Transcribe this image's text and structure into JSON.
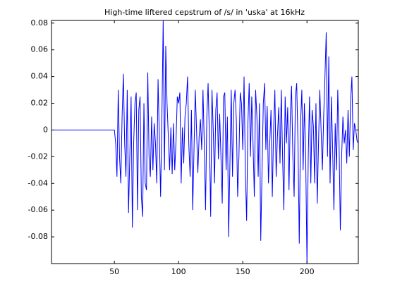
{
  "chart_data": {
    "type": "line",
    "title": "High-time liftered cepstrum of /s/ in 'uska' at 16kHz",
    "x": [
      1,
      2,
      3,
      4,
      5,
      6,
      7,
      8,
      9,
      10,
      11,
      12,
      13,
      14,
      15,
      16,
      17,
      18,
      19,
      20,
      21,
      22,
      23,
      24,
      25,
      26,
      27,
      28,
      29,
      30,
      31,
      32,
      33,
      34,
      35,
      36,
      37,
      38,
      39,
      40,
      41,
      42,
      43,
      44,
      45,
      46,
      47,
      48,
      49,
      50,
      51,
      52,
      53,
      54,
      55,
      56,
      57,
      58,
      59,
      60,
      61,
      62,
      63,
      64,
      65,
      66,
      67,
      68,
      69,
      70,
      71,
      72,
      73,
      74,
      75,
      76,
      77,
      78,
      79,
      80,
      81,
      82,
      83,
      84,
      85,
      86,
      87,
      88,
      89,
      90,
      91,
      92,
      93,
      94,
      95,
      96,
      97,
      98,
      99,
      100,
      101,
      102,
      103,
      104,
      105,
      106,
      107,
      108,
      109,
      110,
      111,
      112,
      113,
      114,
      115,
      116,
      117,
      118,
      119,
      120,
      121,
      122,
      123,
      124,
      125,
      126,
      127,
      128,
      129,
      130,
      131,
      132,
      133,
      134,
      135,
      136,
      137,
      138,
      139,
      140,
      141,
      142,
      143,
      144,
      145,
      146,
      147,
      148,
      149,
      150,
      151,
      152,
      153,
      154,
      155,
      156,
      157,
      158,
      159,
      160,
      161,
      162,
      163,
      164,
      165,
      166,
      167,
      168,
      169,
      170,
      171,
      172,
      173,
      174,
      175,
      176,
      177,
      178,
      179,
      180,
      181,
      182,
      183,
      184,
      185,
      186,
      187,
      188,
      189,
      190,
      191,
      192,
      193,
      194,
      195,
      196,
      197,
      198,
      199,
      200,
      201,
      202,
      203,
      204,
      205,
      206,
      207,
      208,
      209,
      210,
      211,
      212,
      213,
      214,
      215,
      216,
      217,
      218,
      219,
      220,
      221,
      222,
      223,
      224,
      225,
      226,
      227,
      228,
      229,
      230,
      231,
      232,
      233,
      234,
      235,
      236,
      237,
      238,
      239,
      240
    ],
    "series": [
      {
        "color": "#0000ff",
        "values": [
          0,
          0,
          0,
          0,
          0,
          0,
          0,
          0,
          0,
          0,
          0,
          0,
          0,
          0,
          0,
          0,
          0,
          0,
          0,
          0,
          0,
          0,
          0,
          0,
          0,
          0,
          0,
          0,
          0,
          0,
          0,
          0,
          0,
          0,
          0,
          0,
          0,
          0,
          0,
          0,
          0,
          0,
          0,
          0,
          0,
          0,
          0,
          0,
          0,
          0,
          -0.01,
          -0.035,
          0.03,
          -0.02,
          -0.04,
          0.01,
          0.042,
          -0.01,
          -0.035,
          0.03,
          -0.062,
          -0.02,
          0.025,
          -0.073,
          -0.01,
          0.02,
          0.028,
          -0.06,
          0.015,
          0.025,
          -0.05,
          -0.065,
          0.02,
          -0.04,
          -0.045,
          0.043,
          -0.02,
          -0.035,
          0.01,
          -0.03,
          0.005,
          -0.01,
          -0.04,
          0.038,
          -0.005,
          -0.05,
          0.01,
          0.082,
          -0.03,
          0.063,
          0.02,
          -0.005,
          -0.03,
          0.002,
          -0.033,
          0.005,
          -0.03,
          -0.008,
          0.025,
          0.02,
          0.028,
          -0.04,
          0.002,
          -0.025,
          0.01,
          0.02,
          0.04,
          -0.012,
          -0.035,
          0.015,
          -0.06,
          -0.015,
          0.03,
          0.0,
          -0.032,
          -0.005,
          0.008,
          -0.015,
          0.03,
          -0.01,
          -0.06,
          0.01,
          0.035,
          -0.005,
          -0.065,
          0.03,
          0.0,
          -0.04,
          0.015,
          0.028,
          -0.022,
          0.012,
          -0.02,
          -0.055,
          0.025,
          0.028,
          -0.03,
          0.01,
          -0.08,
          -0.025,
          0.03,
          -0.035,
          0.02,
          0.03,
          0.007,
          -0.05,
          -0.02,
          0.028,
          0.02,
          -0.015,
          0.04,
          -0.03,
          -0.068,
          0.005,
          0.035,
          -0.02,
          0.025,
          -0.01,
          -0.05,
          0.03,
          0.01,
          -0.035,
          0.02,
          -0.083,
          -0.03,
          0.02,
          0.035,
          -0.015,
          0.018,
          -0.04,
          -0.01,
          0.015,
          -0.05,
          0.0,
          0.03,
          -0.035,
          -0.005,
          0.017,
          -0.025,
          0.03,
          -0.02,
          -0.06,
          0.025,
          -0.01,
          0.017,
          -0.045,
          0.01,
          0.033,
          -0.02,
          -0.05,
          0.025,
          0.035,
          -0.01,
          -0.085,
          0.005,
          0.03,
          -0.03,
          0.02,
          -0.02,
          -0.1,
          -0.02,
          0.025,
          -0.04,
          0.015,
          0.003,
          -0.04,
          0.02,
          -0.055,
          -0.01,
          0.03,
          0.0,
          -0.03,
          0.01,
          0.04,
          0.073,
          -0.02,
          0.055,
          -0.04,
          0.025,
          -0.015,
          -0.06,
          0.005,
          -0.03,
          0.03,
          -0.01,
          -0.075,
          -0.02,
          0.01,
          -0.01,
          0.0,
          -0.025,
          0.015,
          -0.02,
          0.022,
          0.04,
          -0.015,
          0.005,
          0.0,
          -0.008,
          -0.01
        ]
      }
    ],
    "xlim": [
      1,
      240
    ],
    "xticks": [
      50,
      100,
      150,
      200
    ],
    "ylim": [
      -0.1,
      0.082
    ],
    "yticks": [
      -0.08,
      -0.06,
      -0.04,
      -0.02,
      0,
      0.02,
      0.04,
      0.06,
      0.08
    ]
  }
}
